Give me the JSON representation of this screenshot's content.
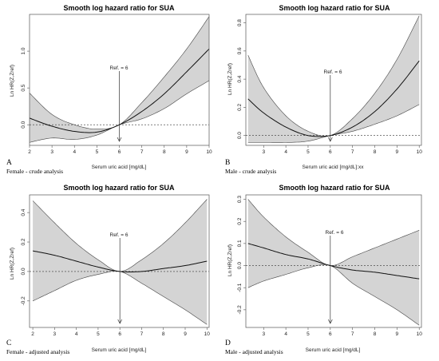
{
  "chart_data": [
    {
      "type": "line",
      "panel_letter": "A",
      "caption": "Female - crude analysis",
      "title": "Smooth log hazard ratio for SUA",
      "xlabel": "Serum uric acid [mg/dL]",
      "ylabel": "Ln HR(Z,Zref)",
      "xlim": [
        2,
        10
      ],
      "ylim": [
        -0.28,
        1.5
      ],
      "xticks": [
        2,
        3,
        4,
        5,
        6,
        7,
        8,
        9,
        10
      ],
      "yticks": [
        0.0,
        0.5,
        1.0
      ],
      "ref_value": 6,
      "ref_label": "Ref. = 6",
      "x": [
        2,
        3,
        4,
        5,
        6,
        7,
        8,
        9,
        10
      ],
      "estimate": [
        0.09,
        -0.02,
        -0.09,
        -0.1,
        0.0,
        0.18,
        0.42,
        0.72,
        1.03
      ],
      "upper": [
        0.43,
        0.14,
        0.0,
        -0.06,
        0.0,
        0.3,
        0.65,
        1.03,
        1.47
      ],
      "lower": [
        -0.24,
        -0.18,
        -0.2,
        -0.14,
        0.0,
        0.08,
        0.22,
        0.42,
        0.6
      ]
    },
    {
      "type": "line",
      "panel_letter": "B",
      "caption": "Male - crude analysis",
      "title": "Smooth log hazard ratio for SUA",
      "xlabel": "Serum uric acid [mg/dL]:xx",
      "ylabel": "Ln HR(Z,Zref)",
      "xlim": [
        2.2,
        10.1
      ],
      "ylim": [
        -0.07,
        0.86
      ],
      "xticks": [
        2,
        3,
        4,
        5,
        6,
        7,
        8,
        9,
        10
      ],
      "yticks": [
        0.0,
        0.2,
        0.4,
        0.6,
        0.8
      ],
      "ref_value": 6,
      "ref_label": "Ref. = 6",
      "x": [
        2.3,
        3,
        4,
        5,
        6,
        7,
        8,
        9,
        10
      ],
      "estimate": [
        0.26,
        0.16,
        0.06,
        0.0,
        0.0,
        0.06,
        0.17,
        0.33,
        0.53
      ],
      "upper": [
        0.57,
        0.34,
        0.14,
        0.03,
        0.0,
        0.12,
        0.3,
        0.54,
        0.85
      ],
      "lower": [
        -0.05,
        -0.05,
        -0.05,
        -0.04,
        0.0,
        0.03,
        0.08,
        0.14,
        0.22
      ]
    },
    {
      "type": "line",
      "panel_letter": "C",
      "caption": "Female - adjusted analysis",
      "title": "Smooth log hazard ratio for SUA",
      "xlabel": "Serum uric acid [mg/dL]",
      "ylabel": "Ln HR(Z,Zref)",
      "xlim": [
        1.85,
        10.1
      ],
      "ylim": [
        -0.38,
        0.52
      ],
      "xticks": [
        2,
        3,
        4,
        5,
        6,
        7,
        8,
        9,
        10
      ],
      "yticks": [
        -0.2,
        0.0,
        0.2,
        0.4
      ],
      "ref_value": 6,
      "ref_label": "Ref. = 6",
      "x": [
        2,
        3,
        4,
        5,
        6,
        7,
        8,
        9,
        10
      ],
      "estimate": [
        0.14,
        0.11,
        0.07,
        0.03,
        0.0,
        0.0,
        0.02,
        0.04,
        0.07
      ],
      "upper": [
        0.48,
        0.33,
        0.19,
        0.08,
        0.0,
        0.08,
        0.19,
        0.33,
        0.49
      ],
      "lower": [
        -0.2,
        -0.13,
        -0.06,
        -0.02,
        0.0,
        -0.08,
        -0.17,
        -0.26,
        -0.36
      ]
    },
    {
      "type": "line",
      "panel_letter": "D",
      "caption": "Male - adjusted analysis",
      "title": "Smooth log hazard ratio for SUA",
      "xlabel": "Serum uric acid [mg/dL]",
      "ylabel": "Ln HR(Z,Zref)",
      "xlim": [
        2.2,
        10.1
      ],
      "ylim": [
        -0.28,
        0.32
      ],
      "xticks": [
        2,
        3,
        4,
        5,
        6,
        7,
        8,
        9,
        10
      ],
      "yticks": [
        -0.2,
        -0.1,
        0.0,
        0.1,
        0.2,
        0.3
      ],
      "ref_value": 6,
      "ref_label": "Ref. = 6",
      "x": [
        2.3,
        3,
        4,
        5,
        6,
        7,
        8,
        9,
        10
      ],
      "estimate": [
        0.1,
        0.08,
        0.05,
        0.03,
        0.0,
        -0.02,
        -0.03,
        -0.045,
        -0.06
      ],
      "upper": [
        0.3,
        0.22,
        0.13,
        0.06,
        0.0,
        0.04,
        0.08,
        0.12,
        0.16
      ],
      "lower": [
        -0.1,
        -0.07,
        -0.04,
        -0.01,
        0.0,
        -0.08,
        -0.14,
        -0.2,
        -0.27
      ]
    }
  ]
}
